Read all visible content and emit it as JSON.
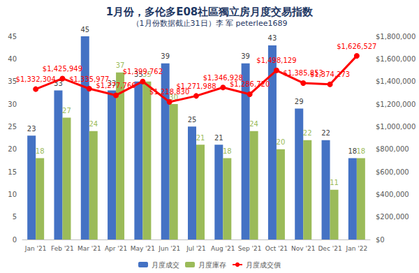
{
  "chart_data": {
    "type": "bar",
    "title": "1月份，多伦多E08社區獨立房月度交易指数",
    "subtitle": "（1月份数据截止31日）李 军 peterlee1689",
    "categories": [
      "Jan '21",
      "Feb '21",
      "Mar '21",
      "Apr '21",
      "May '21",
      "Jun '21",
      "Jul '21",
      "Aug '21",
      "Sep '21",
      "Oct '21",
      "Nov '21",
      "Dec '21",
      "Jan '22"
    ],
    "series": [
      {
        "name": "月度成交",
        "type": "bar",
        "color": "#4472c4",
        "values": [
          23,
          33,
          45,
          33,
          35,
          39,
          25,
          21,
          39,
          43,
          29,
          22,
          18
        ]
      },
      {
        "name": "月度庫存",
        "type": "bar",
        "color": "#9bbb59",
        "values": [
          18,
          27,
          24,
          37,
          35,
          30,
          21,
          18,
          24,
          20,
          22,
          11,
          18
        ]
      },
      {
        "name": "月度成交價",
        "type": "line",
        "axis": "y2",
        "color": "#ff0000",
        "marker": "circle",
        "values": [
          1332304,
          1425949,
          1335977,
          1277766,
          1399762,
          1218830,
          1271988,
          1346928,
          1286720,
          1498129,
          1385853,
          1374273,
          1626527
        ],
        "value_labels": [
          "$1,332,304",
          "$1,425,949",
          "$1,335,977",
          "$1,277,766",
          "$1,399,762",
          "$1,218,830",
          "$1,271,988",
          "$1,346,928",
          "$1,286,720",
          "$1,498,129",
          "$1,385,853",
          "$1,374,273",
          "$1,626,527"
        ]
      }
    ],
    "ylim": [
      0,
      45
    ],
    "yticks": [
      0,
      5,
      10,
      15,
      20,
      25,
      30,
      35,
      40,
      45
    ],
    "y2lim": [
      0,
      1800000
    ],
    "y2ticks": [
      {
        "value": 0,
        "label": "$0"
      },
      {
        "value": 200000,
        "label": "$200,000"
      },
      {
        "value": 400000,
        "label": "$400,000"
      },
      {
        "value": 600000,
        "label": "$600,000"
      },
      {
        "value": 800000,
        "label": "$800,000"
      },
      {
        "value": 1000000,
        "label": "$1,000,000"
      },
      {
        "value": 1200000,
        "label": "$1,200,000"
      },
      {
        "value": 1400000,
        "label": "$1,400,000"
      },
      {
        "value": 1600000,
        "label": "$1,600,000"
      },
      {
        "value": 1800000,
        "label": "$1,800,000"
      }
    ],
    "grid": false,
    "legend": "bottom",
    "data_labels": true
  }
}
